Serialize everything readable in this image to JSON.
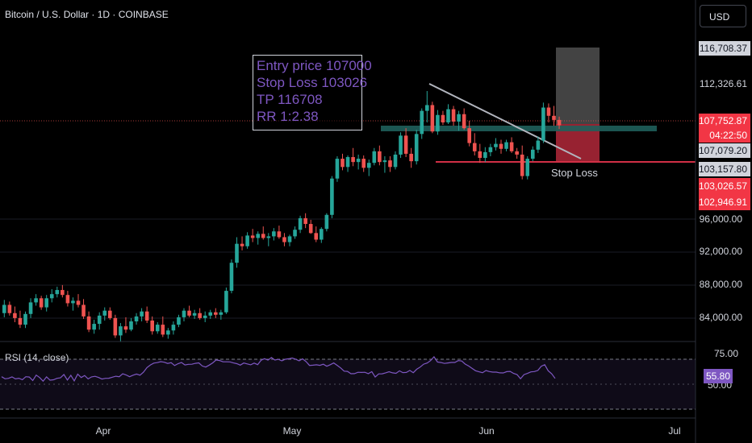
{
  "header": {
    "title": "Bitcoin / U.S. Dollar · 1D · COINBASE",
    "currency_button": "USD"
  },
  "annotation": {
    "lines": [
      "Entry price 107000",
      "Stop Loss 103026",
      "TP 116708",
      "RR 1:2.38"
    ],
    "stop_loss_label": "Stop Loss"
  },
  "rsi": {
    "label": "RSI (14, close)",
    "value_label": "55.80",
    "upper_tick": "75.00",
    "lower_tick": "50.00"
  },
  "price_tags": [
    {
      "text": "116,708.37",
      "style": "light"
    },
    {
      "text": "112,326.61",
      "style": "plain"
    },
    {
      "text": "107,752.87",
      "style": "red"
    },
    {
      "text": "04:22:50",
      "style": "red"
    },
    {
      "text": "107,079.20",
      "style": "light"
    },
    {
      "text": "103,157.80",
      "style": "light"
    },
    {
      "text": "103,026.57",
      "style": "red"
    },
    {
      "text": "102,946.91",
      "style": "red"
    }
  ],
  "chart_data": {
    "type": "candlestick",
    "price_axis_ticks": [
      "96,000.00",
      "92,000.00",
      "88,000.00",
      "84,000.00"
    ],
    "price_axis_tick_values": [
      96000,
      92000,
      88000,
      84000
    ],
    "time_axis_labels": [
      "Apr",
      "May",
      "Jun",
      "Jul"
    ],
    "colors": {
      "up": "#26a69a",
      "down": "#ef5350",
      "rsi": "#7e57c2",
      "target": "#5a5a5a",
      "stop": "#b2283a",
      "trendline": "#b2b5be"
    },
    "trade": {
      "entry": 107000,
      "stop_loss": 103026,
      "take_profit": 116708,
      "rr": "1:2.38"
    },
    "candles": [
      [
        85000,
        86600,
        84500,
        86000
      ],
      [
        86000,
        86400,
        84700,
        85000
      ],
      [
        85000,
        85800,
        83900,
        84400
      ],
      [
        84400,
        85300,
        83200,
        83600
      ],
      [
        83600,
        85200,
        83200,
        84900
      ],
      [
        84900,
        86800,
        84400,
        86300
      ],
      [
        86300,
        87300,
        85900,
        86800
      ],
      [
        86800,
        87100,
        85400,
        85700
      ],
      [
        85700,
        87200,
        85200,
        86800
      ],
      [
        86800,
        87900,
        86300,
        87300
      ],
      [
        87300,
        88200,
        86900,
        87800
      ],
      [
        87800,
        88400,
        86900,
        87200
      ],
      [
        87200,
        87700,
        85800,
        86200
      ],
      [
        86200,
        86900,
        85300,
        86500
      ],
      [
        86500,
        87300,
        85700,
        86000
      ],
      [
        86000,
        86700,
        84300,
        84600
      ],
      [
        84600,
        85200,
        82700,
        83000
      ],
      [
        83000,
        84200,
        82500,
        83700
      ],
      [
        83700,
        85100,
        83000,
        84700
      ],
      [
        84700,
        85700,
        84100,
        85300
      ],
      [
        85300,
        85700,
        84200,
        84400
      ],
      [
        84400,
        84800,
        82000,
        82300
      ],
      [
        82300,
        83800,
        81500,
        83400
      ],
      [
        83400,
        84500,
        82600,
        83000
      ],
      [
        83000,
        84400,
        82800,
        84000
      ],
      [
        84000,
        85000,
        83600,
        84600
      ],
      [
        84600,
        85600,
        84000,
        85200
      ],
      [
        85200,
        85800,
        83800,
        84100
      ],
      [
        84100,
        84600,
        82400,
        82800
      ],
      [
        82800,
        83900,
        82500,
        83600
      ],
      [
        83600,
        84600,
        82100,
        82400
      ],
      [
        82400,
        83200,
        81900,
        82900
      ],
      [
        82900,
        84000,
        82400,
        83600
      ],
      [
        83600,
        84800,
        83300,
        84500
      ],
      [
        84500,
        85600,
        84000,
        85300
      ],
      [
        85300,
        85900,
        84500,
        84700
      ],
      [
        84700,
        85400,
        84300,
        85000
      ],
      [
        85000,
        85600,
        84200,
        84400
      ],
      [
        84400,
        85200,
        83900,
        84700
      ],
      [
        84700,
        85400,
        84300,
        85100
      ],
      [
        85100,
        85600,
        84400,
        84800
      ],
      [
        84800,
        85400,
        84200,
        85100
      ],
      [
        85100,
        88100,
        84900,
        87700
      ],
      [
        87700,
        91500,
        87400,
        91100
      ],
      [
        91100,
        94200,
        90500,
        93400
      ],
      [
        93400,
        94300,
        92600,
        93100
      ],
      [
        93100,
        94800,
        92800,
        94400
      ],
      [
        94400,
        95200,
        93600,
        94100
      ],
      [
        94100,
        94900,
        93300,
        94600
      ],
      [
        94600,
        95500,
        93900,
        94100
      ],
      [
        94100,
        94700,
        93100,
        94300
      ],
      [
        94300,
        95300,
        93800,
        94900
      ],
      [
        94900,
        95600,
        94000,
        94200
      ],
      [
        94200,
        94700,
        93100,
        93600
      ],
      [
        93600,
        94500,
        93100,
        94300
      ],
      [
        94300,
        95500,
        94000,
        95100
      ],
      [
        95100,
        96800,
        94700,
        96500
      ],
      [
        96500,
        97100,
        95300,
        95800
      ],
      [
        95800,
        96300,
        94600,
        94700
      ],
      [
        94700,
        95500,
        93600,
        93900
      ],
      [
        93900,
        95400,
        93500,
        95200
      ],
      [
        95200,
        97100,
        94900,
        96900
      ],
      [
        96900,
        101600,
        96500,
        101300
      ],
      [
        101300,
        104000,
        100900,
        103700
      ],
      [
        103700,
        104300,
        102300,
        102700
      ],
      [
        102700,
        104100,
        102100,
        103900
      ],
      [
        103900,
        105000,
        102800,
        103300
      ],
      [
        103300,
        104200,
        102400,
        103700
      ],
      [
        103700,
        104100,
        102100,
        102600
      ],
      [
        102600,
        103600,
        101600,
        103200
      ],
      [
        103200,
        105000,
        102900,
        104600
      ],
      [
        104600,
        105300,
        102900,
        103300
      ],
      [
        103300,
        104000,
        102000,
        103500
      ],
      [
        103500,
        104000,
        102100,
        102700
      ],
      [
        102700,
        104600,
        102400,
        104200
      ],
      [
        104200,
        106900,
        103800,
        106500
      ],
      [
        106500,
        107400,
        103900,
        104300
      ],
      [
        104300,
        105000,
        102600,
        103400
      ],
      [
        103400,
        107200,
        103000,
        106700
      ],
      [
        106700,
        109800,
        106100,
        109500
      ],
      [
        109500,
        111900,
        108100,
        110200
      ],
      [
        110200,
        110600,
        106800,
        107000
      ],
      [
        107000,
        109600,
        106600,
        109000
      ],
      [
        109000,
        109500,
        107800,
        108100
      ],
      [
        108100,
        110300,
        107900,
        109700
      ],
      [
        109700,
        110100,
        107700,
        108200
      ],
      [
        108200,
        109500,
        107100,
        109100
      ],
      [
        109100,
        109800,
        107200,
        107400
      ],
      [
        107400,
        108300,
        105200,
        105600
      ],
      [
        105600,
        106800,
        104100,
        104600
      ],
      [
        104600,
        105500,
        103200,
        103800
      ],
      [
        103800,
        105100,
        103300,
        104500
      ],
      [
        104500,
        105500,
        104000,
        105100
      ],
      [
        105100,
        106200,
        104700,
        105500
      ],
      [
        105500,
        106000,
        104300,
        104900
      ],
      [
        104900,
        106000,
        104600,
        105700
      ],
      [
        105700,
        106300,
        104400,
        104600
      ],
      [
        104600,
        105000,
        103700,
        104200
      ],
      [
        104200,
        105300,
        101200,
        101600
      ],
      [
        101600,
        104000,
        101200,
        103700
      ],
      [
        103700,
        105200,
        103400,
        104800
      ],
      [
        104800,
        106400,
        104400,
        105900
      ],
      [
        105900,
        110500,
        105600,
        109900
      ],
      [
        109900,
        110400,
        108100,
        108900
      ],
      [
        108900,
        110100,
        107700,
        108400
      ],
      [
        108400,
        108800,
        107300,
        107750
      ]
    ],
    "rsi_values": [
      57.5,
      55.4,
      55.9,
      57.3,
      55.3,
      56.0,
      54.5,
      57.5,
      57.2,
      53.7,
      59.1,
      56.6,
      53.1,
      57.3,
      54.0,
      54.4,
      55.9,
      56.4,
      59.7,
      54.2,
      58.9,
      53.3,
      60.1,
      56.7,
      58.7,
      55.3,
      57.3,
      57.9,
      56.8,
      55.2,
      55.9,
      56.0,
      57.0,
      58.0,
      57.5,
      60.4,
      59.3,
      57.5,
      59.0,
      60.2,
      59.0,
      62.0,
      66.6,
      69.3,
      71.1,
      71.6,
      72.6,
      72.0,
      70.8,
      71.5,
      68.7,
      70.6,
      71.8,
      69.3,
      69.9,
      70.0,
      70.9,
      71.4,
      68.2,
      67.2,
      69.1,
      71.3,
      74.3,
      73.7,
      72.4,
      72.4,
      72.3,
      71.3,
      70.6,
      69.1,
      71.2,
      70.3,
      69.4,
      71.1,
      69.6,
      74.0,
      75.6,
      74.1,
      76.7,
      74.2,
      74.9,
      73.4,
      75.0,
      75.5,
      76.2,
      75.1,
      73.4,
      75.4,
      72.7,
      68.8,
      69.0,
      69.4,
      68.9,
      70.0,
      68.0,
      69.5,
      71.3,
      68.9,
      66.3,
      63.1,
      62.8,
      60.5,
      60.6,
      61.9,
      61.8,
      61.9,
      60.6,
      62.6,
      57.2,
      60.3,
      60.4,
      61.4,
      62.5,
      61.4,
      60.9,
      63.4,
      61.6,
      61.8,
      63.8,
      61.5,
      65.0,
      67.2,
      70.1,
      71.2,
      73.6,
      77.4,
      72.2,
      71.7,
      70.8,
      71.3,
      71.8,
      71.8,
      73.6,
      73.2,
      70.2,
      68.2,
      65.8,
      63.5,
      62.4,
      61.5,
      63.7,
      62.7,
      62.1,
      62.1,
      61.4,
      61.3,
      62.6,
      62.8,
      60.8,
      59.7,
      55.5,
      59.6,
      60.8,
      62.3,
      62.7,
      63.8,
      68.0,
      69.5,
      63.5,
      60.5,
      55.8
    ]
  }
}
